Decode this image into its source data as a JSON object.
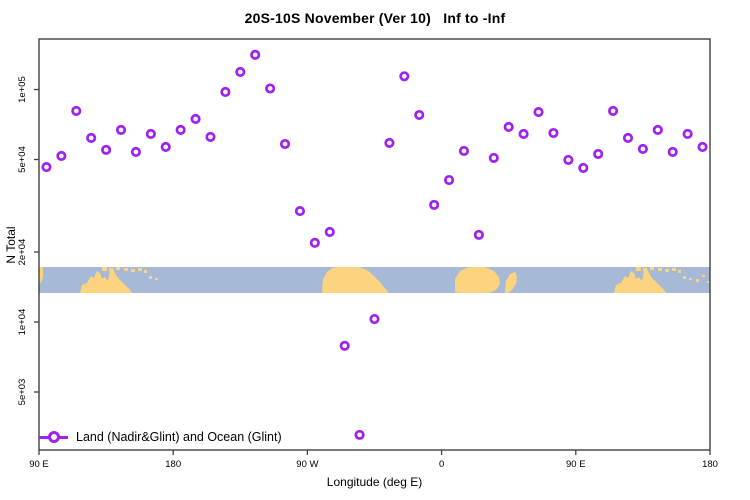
{
  "title": "20S-10S November (Ver 10)   Inf to -Inf",
  "axes": {
    "x": {
      "label": "Longitude (deg E)",
      "ticks": [
        {
          "lon": 90,
          "label": "90 E"
        },
        {
          "lon": 180,
          "label": "180"
        },
        {
          "lon": 270,
          "label": "90 W"
        },
        {
          "lon": 360,
          "label": "0"
        },
        {
          "lon": 450,
          "label": "90 E"
        },
        {
          "lon": 540,
          "label": "180"
        }
      ]
    },
    "y": {
      "label": "N Total",
      "scale": "log",
      "ticks": [
        {
          "value": 100000,
          "label": "1e+05"
        },
        {
          "value": 50000,
          "label": "5e+04"
        },
        {
          "value": 20000,
          "label": "2e+04"
        },
        {
          "value": 10000,
          "label": "1e+04"
        },
        {
          "value": 5000,
          "label": "5e+03"
        }
      ]
    }
  },
  "legend": {
    "label": "Land (Nadir&Glint) and Ocean (Glint)"
  },
  "colors": {
    "marker": "#A020F0",
    "ocean": "#A6BAD8",
    "land": "#FCD37E",
    "axis": "#404040",
    "text": "#000000"
  },
  "chart_data": {
    "type": "scatter",
    "title": "20S-10S November (Ver 10)   Inf to -Inf",
    "xlabel": "Longitude (deg E)",
    "ylabel": "N Total",
    "y_scale": "log",
    "x_tick_labels": [
      "90 E",
      "180",
      "90 W",
      "0",
      "90 E",
      "180"
    ],
    "x_axis_note": "longitude increases eastward from 90E, wrapping past 180 and 0 back to 180 (450 deg span)",
    "xlim_deg_east_from_start": [
      90,
      540
    ],
    "ylim": [
      2400,
      190000
    ],
    "legend_position": "bottom-left inside plot",
    "grid": false,
    "series": [
      {
        "name": "Land (Nadir&Glint) and Ocean (Glint)",
        "marker": "open-circle",
        "color": "#A020F0",
        "lon_deg": [
          95,
          105,
          115,
          125,
          135,
          145,
          155,
          165,
          175,
          185,
          195,
          205,
          215,
          225,
          235,
          245,
          255,
          265,
          275,
          285,
          295,
          305,
          315,
          325,
          335,
          345,
          355,
          365,
          375,
          385,
          395,
          405,
          415,
          425,
          435,
          445,
          455,
          465,
          475,
          485,
          495,
          505,
          515,
          525,
          535
        ],
        "n_total": [
          46400,
          51800,
          80900,
          61900,
          55000,
          67000,
          53900,
          64400,
          56600,
          67000,
          74700,
          62500,
          97600,
          119000,
          141000,
          101000,
          58300,
          30000,
          21900,
          24400,
          7900,
          3270,
          10300,
          58900,
          114000,
          77700,
          31900,
          40800,
          54400,
          23700,
          50800,
          69000,
          64400,
          80000,
          65000,
          49800,
          46000,
          52800,
          80900,
          61900,
          55500,
          67000,
          53900,
          64400,
          56600
        ]
      }
    ],
    "map_strip": {
      "description": "horizontal world-map band (20S-10S latitude slice) drawn across the plot near y=2e+04; blue=ocean, tan=land",
      "ocean_color": "#A6BAD8",
      "land_color": "#FCD37E",
      "land_polygons": {
        "west_sliver": [
          [
            0,
            0
          ],
          [
            4,
            0
          ],
          [
            4,
            10
          ],
          [
            2,
            16
          ],
          [
            0,
            16
          ]
        ],
        "australia_1": [
          [
            41,
            26
          ],
          [
            43,
            18
          ],
          [
            48,
            16
          ],
          [
            52,
            9
          ],
          [
            55,
            11
          ],
          [
            58,
            4
          ],
          [
            61,
            6
          ],
          [
            63,
            12
          ],
          [
            66,
            10
          ],
          [
            69,
            14
          ],
          [
            71,
            4
          ],
          [
            74,
            2
          ],
          [
            77,
            8
          ],
          [
            80,
            12
          ],
          [
            84,
            16
          ],
          [
            88,
            20
          ],
          [
            92,
            24
          ],
          [
            93,
            26
          ]
        ],
        "south_america": [
          [
            283,
            26
          ],
          [
            284,
            12
          ],
          [
            288,
            5
          ],
          [
            293,
            1
          ],
          [
            298,
            0
          ],
          [
            320,
            0
          ],
          [
            328,
            3
          ],
          [
            334,
            8
          ],
          [
            340,
            14
          ],
          [
            344,
            19
          ],
          [
            350,
            26
          ]
        ],
        "africa": [
          [
            416,
            25
          ],
          [
            416,
            12
          ],
          [
            421,
            4
          ],
          [
            430,
            0
          ],
          [
            446,
            0
          ],
          [
            455,
            4
          ],
          [
            460,
            10
          ],
          [
            461,
            17
          ],
          [
            457,
            23
          ],
          [
            450,
            26
          ],
          [
            420,
            26
          ]
        ],
        "madagascar": [
          [
            466,
            24
          ],
          [
            467,
            14
          ],
          [
            471,
            7
          ],
          [
            476,
            5
          ],
          [
            478,
            10
          ],
          [
            477,
            17
          ],
          [
            473,
            23
          ],
          [
            469,
            26
          ],
          [
            466,
            26
          ]
        ],
        "australia_2": [
          [
            575,
            26
          ],
          [
            577,
            18
          ],
          [
            582,
            16
          ],
          [
            586,
            9
          ],
          [
            589,
            11
          ],
          [
            592,
            4
          ],
          [
            595,
            6
          ],
          [
            597,
            12
          ],
          [
            600,
            10
          ],
          [
            603,
            14
          ],
          [
            605,
            4
          ],
          [
            608,
            2
          ],
          [
            611,
            8
          ],
          [
            614,
            12
          ],
          [
            618,
            16
          ],
          [
            622,
            20
          ],
          [
            626,
            24
          ],
          [
            627,
            26
          ]
        ]
      },
      "land_island_rects": [
        [
          63,
          0,
          5,
          4
        ],
        [
          70,
          1,
          4,
          3
        ],
        [
          77,
          0,
          4,
          3
        ],
        [
          85,
          1,
          4,
          3
        ],
        [
          92,
          2,
          4,
          3
        ],
        [
          99,
          1,
          4,
          3
        ],
        [
          105,
          3,
          3,
          3
        ],
        [
          110,
          9,
          3,
          3
        ],
        [
          116,
          11,
          3,
          2
        ],
        [
          597,
          0,
          5,
          4
        ],
        [
          604,
          1,
          4,
          3
        ],
        [
          611,
          0,
          4,
          3
        ],
        [
          619,
          1,
          4,
          3
        ],
        [
          626,
          2,
          4,
          3
        ],
        [
          633,
          1,
          4,
          3
        ],
        [
          639,
          3,
          3,
          3
        ],
        [
          644,
          9,
          3,
          3
        ],
        [
          650,
          11,
          3,
          2
        ],
        [
          657,
          12,
          3,
          3
        ],
        [
          663,
          8,
          3,
          2
        ],
        [
          668,
          14,
          3,
          2
        ]
      ]
    }
  }
}
